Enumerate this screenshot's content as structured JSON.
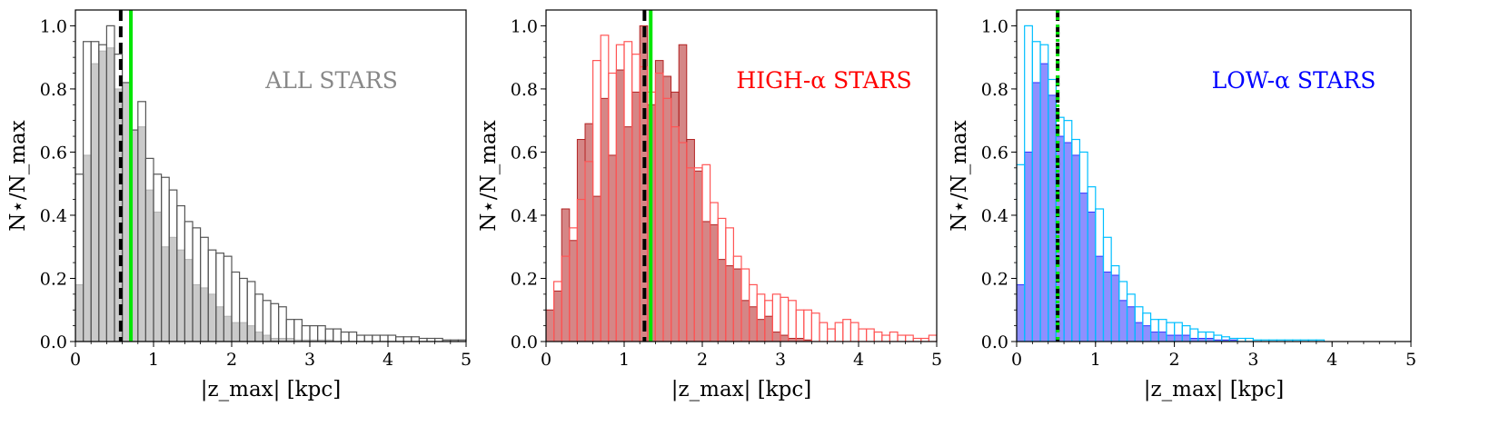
{
  "figure": {
    "x_ticks": [
      "0",
      "1",
      "2",
      "3",
      "4",
      "5"
    ],
    "y_ticks": [
      "0.0",
      "0.2",
      "0.4",
      "0.6",
      "0.8",
      "1.0"
    ],
    "xlabel": "|z_max| [kpc]",
    "ylabel": "N⋆/N_max"
  },
  "chart_data": [
    {
      "type": "bar",
      "annotation": "ALL STARS",
      "annotation_color": "#888888",
      "bin_width": 0.1,
      "bin_start": 0.0,
      "xlim": [
        0,
        5
      ],
      "ylim": [
        0,
        1.05
      ],
      "xlabel": "|z_max| [kpc]",
      "ylabel": "N⋆/N_max",
      "x_ticks": [
        0,
        1,
        2,
        3,
        4,
        5
      ],
      "y_ticks": [
        0.0,
        0.2,
        0.4,
        0.6,
        0.8,
        1.0
      ],
      "series": [
        {
          "style": "step-outline",
          "color": "#555555",
          "values": [
            0.53,
            0.95,
            0.95,
            0.94,
            1.0,
            0.91,
            0.82,
            0.67,
            0.76,
            0.58,
            0.53,
            0.52,
            0.48,
            0.43,
            0.38,
            0.36,
            0.33,
            0.29,
            0.28,
            0.27,
            0.22,
            0.2,
            0.19,
            0.15,
            0.13,
            0.12,
            0.11,
            0.07,
            0.07,
            0.05,
            0.05,
            0.05,
            0.04,
            0.04,
            0.03,
            0.03,
            0.02,
            0.02,
            0.02,
            0.02,
            0.02,
            0.015,
            0.015,
            0.015,
            0.01,
            0.01,
            0.01,
            0.005,
            0.005,
            0.005
          ]
        },
        {
          "style": "filled",
          "color": "#b3b3b3",
          "values": [
            0.18,
            0.59,
            0.88,
            0.92,
            0.93,
            0.8,
            0.82,
            0.67,
            0.68,
            0.48,
            0.41,
            0.3,
            0.33,
            0.29,
            0.26,
            0.18,
            0.17,
            0.15,
            0.11,
            0.08,
            0.06,
            0.06,
            0.05,
            0.03,
            0.02,
            0.01,
            0.01,
            0.01,
            0.005,
            0.005,
            0.005,
            0.005,
            0.005,
            0,
            0,
            0,
            0,
            0,
            0,
            0,
            0,
            0,
            0,
            0,
            0,
            0,
            0,
            0,
            0,
            0
          ]
        }
      ],
      "vlines": [
        {
          "x": 0.58,
          "color": "#000000",
          "style": "dashed"
        },
        {
          "x": 0.71,
          "color": "#00e600",
          "style": "solid"
        }
      ]
    },
    {
      "type": "bar",
      "annotation": "HIGH-α STARS",
      "annotation_color": "#ff0000",
      "bin_width": 0.1,
      "bin_start": 0.0,
      "xlim": [
        0,
        5
      ],
      "ylim": [
        0,
        1.05
      ],
      "xlabel": "|z_max| [kpc]",
      "ylabel": "N⋆/N_max",
      "x_ticks": [
        0,
        1,
        2,
        3,
        4,
        5
      ],
      "y_ticks": [
        0.0,
        0.2,
        0.4,
        0.6,
        0.8,
        1.0
      ],
      "series": [
        {
          "style": "step-outline",
          "color": "#ff5555",
          "values": [
            0.0,
            0.19,
            0.27,
            0.36,
            0.45,
            0.57,
            0.89,
            0.97,
            0.85,
            0.94,
            0.95,
            0.91,
            0.87,
            0.79,
            0.85,
            0.77,
            0.68,
            0.63,
            0.55,
            0.55,
            0.56,
            0.44,
            0.39,
            0.36,
            0.27,
            0.23,
            0.18,
            0.15,
            0.13,
            0.15,
            0.14,
            0.13,
            0.1,
            0.1,
            0.09,
            0.06,
            0.04,
            0.06,
            0.07,
            0.06,
            0.04,
            0.04,
            0.03,
            0.02,
            0.03,
            0.02,
            0.02,
            0.01,
            0.01,
            0.02
          ]
        },
        {
          "style": "filled",
          "color": "#b22222",
          "values": [
            0.1,
            0.16,
            0.42,
            0.32,
            0.64,
            0.69,
            0.46,
            0.77,
            0.59,
            0.86,
            0.68,
            0.79,
            1.0,
            0.75,
            0.89,
            0.84,
            0.79,
            0.94,
            0.64,
            0.54,
            0.38,
            0.37,
            0.26,
            0.24,
            0.23,
            0.13,
            0.11,
            0.07,
            0.08,
            0.03,
            0.02,
            0.01,
            0.01,
            0.005,
            0,
            0,
            0,
            0,
            0,
            0,
            0,
            0,
            0,
            0,
            0,
            0,
            0,
            0,
            0,
            0
          ]
        }
      ],
      "vlines": [
        {
          "x": 1.26,
          "color": "#000000",
          "style": "dashed"
        },
        {
          "x": 1.34,
          "color": "#00e600",
          "style": "solid"
        }
      ]
    },
    {
      "type": "bar",
      "annotation": "LOW-α STARS",
      "annotation_color": "#0000ff",
      "bin_width": 0.1,
      "bin_start": 0.0,
      "xlim": [
        0,
        5
      ],
      "ylim": [
        0,
        1.05
      ],
      "xlabel": "|z_max| [kpc]",
      "ylabel": "N⋆/N_max",
      "x_ticks": [
        0,
        1,
        2,
        3,
        4,
        5
      ],
      "y_ticks": [
        0.0,
        0.2,
        0.4,
        0.6,
        0.8,
        1.0
      ],
      "series": [
        {
          "style": "step-outline",
          "color": "#00bfff",
          "values": [
            0.56,
            1.0,
            0.95,
            0.94,
            0.83,
            0.71,
            0.7,
            0.64,
            0.6,
            0.49,
            0.42,
            0.33,
            0.24,
            0.19,
            0.15,
            0.11,
            0.09,
            0.07,
            0.07,
            0.06,
            0.06,
            0.05,
            0.04,
            0.03,
            0.03,
            0.02,
            0.015,
            0.01,
            0.01,
            0.01,
            0.005,
            0.005,
            0.005,
            0.005,
            0.005,
            0.005,
            0.005,
            0.005,
            0.005,
            0,
            0,
            0,
            0,
            0,
            0,
            0,
            0,
            0,
            0,
            0
          ]
        },
        {
          "style": "filled",
          "color": "#3333ff",
          "values": [
            0.18,
            0.6,
            0.82,
            0.88,
            0.78,
            0.65,
            0.63,
            0.59,
            0.47,
            0.41,
            0.27,
            0.22,
            0.21,
            0.13,
            0.11,
            0.06,
            0.05,
            0.03,
            0.03,
            0.02,
            0.02,
            0.02,
            0.01,
            0.01,
            0.01,
            0.005,
            0.005,
            0.005,
            0,
            0,
            0,
            0,
            0,
            0,
            0,
            0,
            0,
            0,
            0,
            0,
            0,
            0,
            0,
            0,
            0,
            0,
            0,
            0,
            0,
            0
          ]
        }
      ],
      "vlines": [
        {
          "x": 0.52,
          "color": "#000000",
          "style": "dashed"
        },
        {
          "x": 0.52,
          "color": "#00e600",
          "style": "dotted"
        }
      ]
    }
  ]
}
